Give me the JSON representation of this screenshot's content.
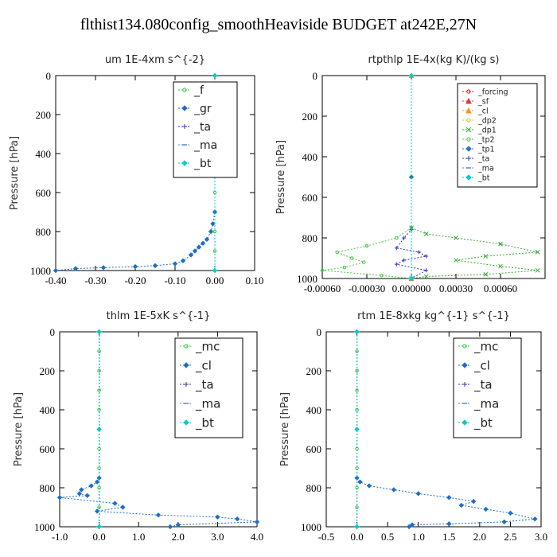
{
  "figure_title": "flthist134.080config_smoothHeaviside  BUDGET at242E,27N",
  "chart_data": [
    {
      "id": "um",
      "type": "line",
      "title": "um   1E-4xm s^{-2}",
      "ylabel": "Pressure [hPa]",
      "xlim": [
        -0.4,
        0.1
      ],
      "ylim": [
        1000,
        0
      ],
      "xticks": [
        "-0.40",
        "-0.30",
        "-0.20",
        "-0.10",
        "0.00",
        "0.10"
      ],
      "xtick_values": [
        -0.4,
        -0.3,
        -0.2,
        -0.1,
        0.0,
        0.1
      ],
      "yticks": [
        "0",
        "200",
        "400",
        "600",
        "800",
        "1000"
      ],
      "ytick_values": [
        0,
        200,
        400,
        600,
        800,
        1000
      ],
      "legend_position": "top-right",
      "series": [
        {
          "name": "_f",
          "color": "#33cc33",
          "marker": "circle",
          "x": [
            0,
            0,
            0,
            0,
            0,
            0,
            0,
            0,
            0,
            0,
            0
          ],
          "y": [
            0,
            100,
            200,
            300,
            400,
            500,
            600,
            700,
            800,
            900,
            1000
          ]
        },
        {
          "name": "_gr",
          "color": "#1f6fc5",
          "marker": "diamond",
          "x": [
            0,
            0,
            -0.005,
            -0.01,
            -0.02,
            -0.03,
            -0.04,
            -0.05,
            -0.06,
            -0.08,
            -0.1,
            -0.15,
            -0.2,
            -0.28,
            -0.35,
            -0.4
          ],
          "y": [
            0,
            700,
            760,
            800,
            840,
            860,
            880,
            900,
            920,
            950,
            965,
            975,
            980,
            985,
            990,
            1000
          ]
        },
        {
          "name": "_ta",
          "color": "#3333cc",
          "marker": "plus",
          "x": [
            0,
            0,
            0
          ],
          "y": [
            0,
            500,
            1000
          ]
        },
        {
          "name": "_ma",
          "color": "#5588cc",
          "marker": "dash",
          "x": [
            0,
            0,
            0
          ],
          "y": [
            0,
            500,
            1000
          ]
        },
        {
          "name": "_bt",
          "color": "#00cccc",
          "marker": "diamond",
          "x": [
            0,
            0,
            0
          ],
          "y": [
            0,
            500,
            1000
          ]
        }
      ]
    },
    {
      "id": "rtpthlp",
      "type": "line",
      "title": "rtpthlp   1E-4x(kg K)/(kg s)",
      "ylabel": "Pressure [hPa]",
      "xlim": [
        -0.0006,
        0.0009
      ],
      "ylim": [
        1000,
        0
      ],
      "xticks": [
        "-0.00060",
        "-0.00030",
        "0.000000",
        "0.00030",
        "0.00060"
      ],
      "xtick_values": [
        -0.0006,
        -0.0003,
        0.0,
        0.0003,
        0.0006
      ],
      "yticks": [
        "0",
        "200",
        "400",
        "600",
        "800",
        "1000"
      ],
      "ytick_values": [
        0,
        200,
        400,
        600,
        800,
        1000
      ],
      "legend_position": "top-right",
      "series": [
        {
          "name": "_forcing",
          "color": "#cc2222",
          "marker": "circle",
          "x": [
            0,
            0,
            0
          ],
          "y": [
            0,
            500,
            1000
          ]
        },
        {
          "name": "_sf",
          "color": "#dd3344",
          "marker": "triangle",
          "x": [
            0,
            0
          ],
          "y": [
            0,
            1000
          ]
        },
        {
          "name": "_cl",
          "color": "#ee9922",
          "marker": "triangle",
          "x": [
            0,
            0
          ],
          "y": [
            0,
            1000
          ]
        },
        {
          "name": "_dp2",
          "color": "#ddcc22",
          "marker": "circle",
          "x": [
            0,
            0
          ],
          "y": [
            0,
            1000
          ]
        },
        {
          "name": "_dp1",
          "color": "#33aa33",
          "marker": "cross",
          "x": [
            0,
            0.0001,
            0.0003,
            0.0006,
            0.00085,
            0.0005,
            0.0003,
            0.0006,
            0.00085,
            0.0005,
            0.0001,
            0
          ],
          "y": [
            750,
            780,
            800,
            830,
            870,
            890,
            910,
            940,
            960,
            980,
            990,
            1000
          ]
        },
        {
          "name": "_tp2",
          "color": "#44cc44",
          "marker": "circle",
          "x": [
            0,
            -0.0001,
            -0.0003,
            -0.0005,
            -0.0004,
            -0.00032,
            -0.00045,
            -0.0006,
            -0.0002,
            0
          ],
          "y": [
            750,
            800,
            840,
            870,
            900,
            920,
            945,
            960,
            985,
            1000
          ]
        },
        {
          "name": "_tp1",
          "color": "#2277cc",
          "marker": "diamond",
          "x": [
            0,
            0,
            0
          ],
          "y": [
            0,
            500,
            1000
          ]
        },
        {
          "name": "_ta",
          "color": "#3333cc",
          "marker": "plus",
          "x": [
            0,
            0,
            -5e-05,
            -0.0001,
            5e-05,
            0.0001,
            -5e-05,
            -0.0001,
            0.0001,
            0
          ],
          "y": [
            0,
            760,
            800,
            850,
            870,
            890,
            910,
            930,
            960,
            1000
          ]
        },
        {
          "name": "_ma",
          "color": "#5588cc",
          "marker": "dash",
          "x": [
            0,
            0
          ],
          "y": [
            0,
            1000
          ]
        },
        {
          "name": "_bt",
          "color": "#00cccc",
          "marker": "diamond",
          "x": [
            0,
            0
          ],
          "y": [
            0,
            1000
          ]
        }
      ]
    },
    {
      "id": "thlm",
      "type": "line",
      "title": "thlm   1E-5xK s^{-1}",
      "ylabel": "Pressure [hPa]",
      "xlim": [
        -1.0,
        4.0
      ],
      "ylim": [
        1000,
        0
      ],
      "xticks": [
        "-1.0",
        "0.0",
        "1.0",
        "2.0",
        "3.0",
        "4.0"
      ],
      "xtick_values": [
        -1.0,
        0.0,
        1.0,
        2.0,
        3.0,
        4.0
      ],
      "yticks": [
        "0",
        "200",
        "400",
        "600",
        "800",
        "1000"
      ],
      "ytick_values": [
        0,
        200,
        400,
        600,
        800,
        1000
      ],
      "legend_position": "top-right",
      "series": [
        {
          "name": "_mc",
          "color": "#33cc33",
          "marker": "circle",
          "x": [
            0,
            0,
            0,
            0,
            0,
            0,
            0,
            0,
            0,
            0,
            0
          ],
          "y": [
            0,
            100,
            200,
            300,
            400,
            500,
            600,
            700,
            800,
            900,
            1000
          ]
        },
        {
          "name": "_cl",
          "color": "#1f6fc5",
          "marker": "diamond",
          "x": [
            0,
            0,
            -0.05,
            -0.2,
            -0.45,
            -0.5,
            -0.3,
            -1.0,
            0.4,
            0.6,
            -0.05,
            1.5,
            3.0,
            3.5,
            4.0,
            2.0,
            1.8
          ],
          "y": [
            0,
            750,
            770,
            790,
            810,
            830,
            840,
            850,
            880,
            900,
            920,
            940,
            950,
            960,
            975,
            990,
            1000
          ]
        },
        {
          "name": "_ta",
          "color": "#3333cc",
          "marker": "plus",
          "x": [
            0,
            0,
            0
          ],
          "y": [
            0,
            500,
            1000
          ]
        },
        {
          "name": "_ma",
          "color": "#5588cc",
          "marker": "dash",
          "x": [
            0,
            0,
            0
          ],
          "y": [
            0,
            500,
            1000
          ]
        },
        {
          "name": "_bt",
          "color": "#00cccc",
          "marker": "diamond",
          "x": [
            0,
            0,
            0
          ],
          "y": [
            0,
            500,
            1000
          ]
        }
      ]
    },
    {
      "id": "rtm",
      "type": "line",
      "title": "rtm   1E-8xkg kg^{-1} s^{-1}",
      "ylabel": "Pressure [hPa]",
      "xlim": [
        -0.5,
        3.0
      ],
      "ylim": [
        1000,
        0
      ],
      "xticks": [
        "-0.5",
        "0.0",
        "0.5",
        "1.0",
        "1.5",
        "2.0",
        "2.5",
        "3.0"
      ],
      "xtick_values": [
        -0.5,
        0.0,
        0.5,
        1.0,
        1.5,
        2.0,
        2.5,
        3.0
      ],
      "yticks": [
        "0",
        "200",
        "400",
        "600",
        "800",
        "1000"
      ],
      "ytick_values": [
        0,
        200,
        400,
        600,
        800,
        1000
      ],
      "legend_position": "top-right",
      "series": [
        {
          "name": "_mc",
          "color": "#33cc33",
          "marker": "circle",
          "x": [
            0,
            0,
            0,
            0,
            0,
            0,
            0,
            0,
            0,
            0,
            0
          ],
          "y": [
            0,
            100,
            200,
            300,
            400,
            500,
            600,
            700,
            800,
            900,
            1000
          ]
        },
        {
          "name": "_cl",
          "color": "#1f6fc5",
          "marker": "diamond",
          "x": [
            0,
            0,
            0.05,
            0.2,
            0.6,
            1.0,
            1.5,
            1.9,
            1.7,
            2.1,
            2.5,
            2.9,
            2.4,
            1.5,
            0.9,
            0.85
          ],
          "y": [
            0,
            750,
            770,
            790,
            810,
            830,
            850,
            870,
            890,
            910,
            930,
            960,
            975,
            985,
            990,
            1000
          ]
        },
        {
          "name": "_ta",
          "color": "#3333cc",
          "marker": "plus",
          "x": [
            0,
            0,
            0
          ],
          "y": [
            0,
            500,
            1000
          ]
        },
        {
          "name": "_ma",
          "color": "#5588cc",
          "marker": "dash",
          "x": [
            0,
            0,
            0
          ],
          "y": [
            0,
            500,
            1000
          ]
        },
        {
          "name": "_bt",
          "color": "#00cccc",
          "marker": "diamond",
          "x": [
            0,
            0,
            0
          ],
          "y": [
            0,
            500,
            1000
          ]
        }
      ]
    }
  ]
}
